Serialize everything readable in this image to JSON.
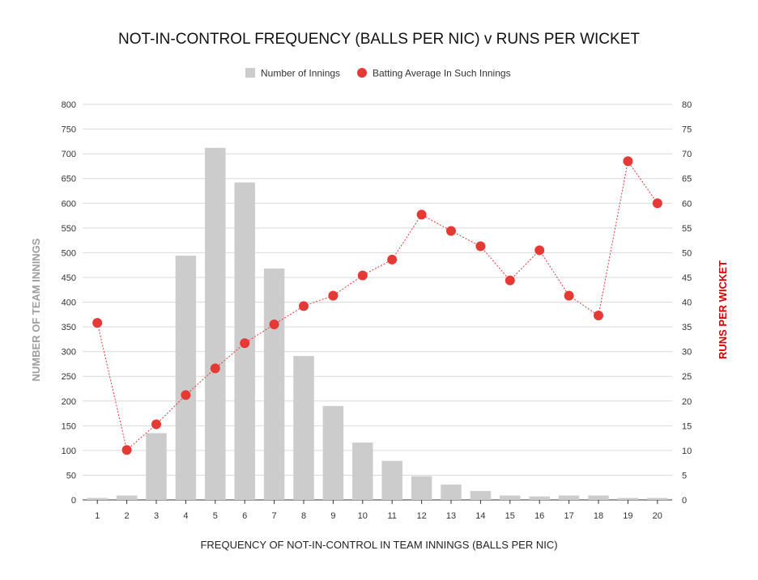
{
  "chart_data": {
    "type": "bar",
    "title": "NOT-IN-CONTROL FREQUENCY (BALLS PER NIC) v RUNS PER WICKET",
    "xlabel": "FREQUENCY OF NOT-IN-CONTROL IN TEAM INNINGS (BALLS PER NIC)",
    "ylabel": "NUMBER OF TEAM INNINGS",
    "y2label": "RUNS PER WICKET",
    "categories": [
      "1",
      "2",
      "3",
      "4",
      "5",
      "6",
      "7",
      "8",
      "9",
      "10",
      "11",
      "12",
      "13",
      "14",
      "15",
      "16",
      "17",
      "18",
      "19",
      "20"
    ],
    "ylim": [
      0,
      800
    ],
    "y2lim": [
      0,
      80
    ],
    "yticks": [
      0,
      50,
      100,
      150,
      200,
      250,
      300,
      350,
      400,
      450,
      500,
      550,
      600,
      650,
      700,
      750,
      800
    ],
    "y2ticks": [
      0,
      5,
      10,
      15,
      20,
      25,
      30,
      35,
      40,
      45,
      50,
      55,
      60,
      65,
      70,
      75,
      80
    ],
    "grid": true,
    "legend_position": "top-center",
    "series": [
      {
        "name": "Number of Innings",
        "type": "bar",
        "axis": "left",
        "color": "#cccccc",
        "values": [
          4,
          9,
          135,
          494,
          712,
          642,
          468,
          291,
          190,
          116,
          79,
          48,
          31,
          18,
          9,
          7,
          9,
          9,
          4,
          4
        ]
      },
      {
        "name": "Batting Average In Such Innings",
        "type": "line",
        "axis": "right",
        "color": "#e53935",
        "line_style": "dotted",
        "values": [
          35.8,
          10.1,
          15.3,
          21.2,
          26.6,
          31.7,
          35.5,
          39.2,
          41.3,
          45.4,
          48.6,
          57.7,
          54.4,
          51.3,
          44.4,
          50.5,
          41.3,
          37.3,
          68.5,
          60.0
        ]
      }
    ]
  }
}
